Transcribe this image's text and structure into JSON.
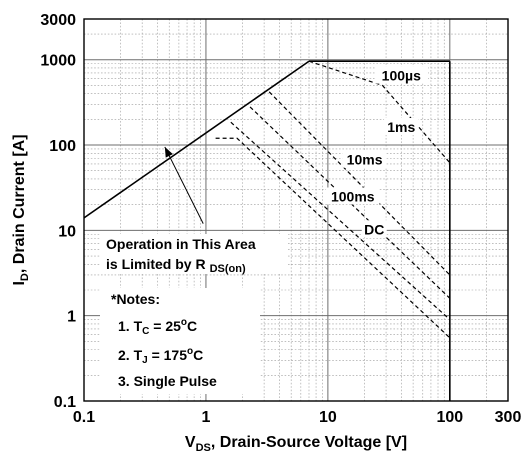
{
  "chart_data": {
    "type": "line",
    "xscale": "log",
    "yscale": "log",
    "xlim": [
      0.1,
      300
    ],
    "ylim": [
      0.1,
      3000
    ],
    "xlabel_main": "V",
    "xlabel_sub": "DS",
    "xlabel_rest": ", Drain-Source Voltage [V]",
    "ylabel_main": "I",
    "ylabel_sub": "D",
    "ylabel_rest": ", Drain Current [A]",
    "xticks": [
      {
        "value": 0.1,
        "label": "0.1"
      },
      {
        "value": 1,
        "label": "1"
      },
      {
        "value": 10,
        "label": "10"
      },
      {
        "value": 100,
        "label": "100"
      },
      {
        "value": 300,
        "label": "300"
      }
    ],
    "yticks": [
      {
        "value": 0.1,
        "label": "0.1"
      },
      {
        "value": 1,
        "label": "1"
      },
      {
        "value": 10,
        "label": "10"
      },
      {
        "value": 100,
        "label": "100"
      },
      {
        "value": 1000,
        "label": "1000"
      },
      {
        "value": 3000,
        "label": "3000"
      }
    ],
    "grid": true,
    "series": [
      {
        "name": "RDS(on) limit",
        "style": "solid",
        "points": [
          [
            0.1,
            14
          ],
          [
            7,
            960
          ]
        ]
      },
      {
        "name": "100µs",
        "style": "dashed",
        "points": [
          [
            7,
            960
          ],
          [
            28,
            500
          ],
          [
            100,
            62
          ]
        ]
      },
      {
        "name": "1ms",
        "style": "dashed",
        "points": [
          [
            3.3,
            420
          ],
          [
            100,
            3
          ]
        ]
      },
      {
        "name": "10ms",
        "style": "dashed",
        "points": [
          [
            2.3,
            280
          ],
          [
            100,
            1.6
          ]
        ]
      },
      {
        "name": "100ms",
        "style": "dashed",
        "points": [
          [
            1.6,
            185
          ],
          [
            100,
            0.9
          ]
        ]
      },
      {
        "name": "DC",
        "style": "dashed",
        "points": [
          [
            1.2,
            120
          ],
          [
            1.8,
            120
          ],
          [
            100,
            0.55
          ]
        ]
      }
    ],
    "limit_lines": [
      {
        "orientation": "horizontal",
        "value": 960,
        "style": "solid",
        "from": 7,
        "to": 100
      },
      {
        "orientation": "vertical",
        "value": 100,
        "style": "solid",
        "from": 0.1,
        "to": 960
      }
    ],
    "labels": [
      {
        "text": "100µs",
        "x": 40,
        "y": 600
      },
      {
        "text": "1ms",
        "x": 40,
        "y": 150
      },
      {
        "text": "10ms",
        "x": 20,
        "y": 62
      },
      {
        "text": "100ms",
        "x": 16,
        "y": 23
      },
      {
        "text": "DC",
        "x": 24,
        "y": 9.5
      }
    ],
    "annotation": {
      "line1": "Operation in This Area",
      "line2_main": "is Limited by R",
      "line2_sub": "DS(on)",
      "arrow_to": [
        0.46,
        95
      ],
      "arrow_from": [
        0.95,
        12
      ]
    },
    "notes": {
      "title": "*Notes:",
      "n1_main": "1. T",
      "n1_sub": "C",
      "n1_rest": " = 25",
      "n1_sup": "o",
      "n1_end": "C",
      "n2_main": "2. T",
      "n2_sub": "J",
      "n2_rest": " = 175",
      "n2_sup": "o",
      "n2_end": "C",
      "n3": "3. Single Pulse"
    }
  }
}
